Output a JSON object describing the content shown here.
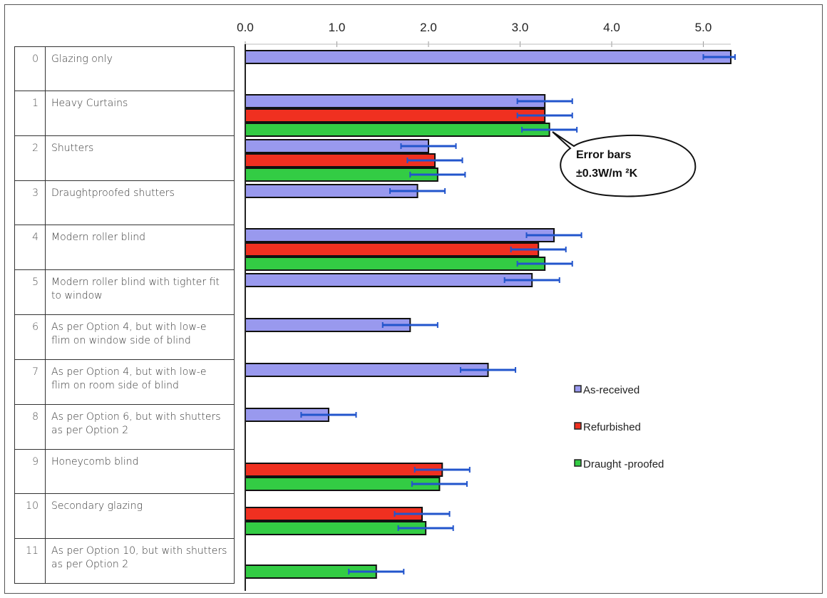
{
  "options": [
    {
      "num": "0",
      "label": "Glazing only"
    },
    {
      "num": "1",
      "label": "Heavy Curtains"
    },
    {
      "num": "2",
      "label": "Shutters"
    },
    {
      "num": "3",
      "label": "Draughtproofed shutters"
    },
    {
      "num": "4",
      "label": "Modern roller blind"
    },
    {
      "num": "5",
      "label": "Modern roller blind with tighter fit to window"
    },
    {
      "num": "6",
      "label": "As per Option 4, but with low-e flim on window side of blind"
    },
    {
      "num": "7",
      "label": "As per Option 4, but with low-e flim on room side of blind"
    },
    {
      "num": "8",
      "label": "As per Option 6, but with shutters as per Option 2"
    },
    {
      "num": "9",
      "label": "Honeycomb blind"
    },
    {
      "num": "10",
      "label": "Secondary glazing"
    },
    {
      "num": "11",
      "label": "As per Option 10, but with shutters as per Option 2"
    }
  ],
  "chart_data": {
    "type": "bar",
    "orientation": "horizontal",
    "x_ticks": [
      "0.0",
      "1.0",
      "2.0",
      "3.0",
      "4.0",
      "5.0"
    ],
    "xlim": [
      0,
      5.3
    ],
    "categories": [
      "0",
      "1",
      "2",
      "3",
      "4",
      "5",
      "6",
      "7",
      "8",
      "9",
      "10",
      "11"
    ],
    "series": [
      {
        "name": "As-received",
        "color": "#9999ee",
        "values": [
          5.3,
          3.27,
          2.0,
          1.88,
          3.37,
          3.13,
          1.8,
          2.65,
          0.91,
          null,
          null,
          null
        ]
      },
      {
        "name": "Refurbished",
        "color": "#f03020",
        "values": [
          null,
          3.27,
          2.07,
          null,
          3.2,
          null,
          null,
          null,
          null,
          2.15,
          1.93,
          null
        ]
      },
      {
        "name": "Draught -proofed",
        "color": "#33cc44",
        "values": [
          null,
          3.32,
          2.1,
          null,
          3.27,
          null,
          null,
          null,
          null,
          2.12,
          1.97,
          1.43
        ]
      }
    ],
    "error_bar": 0.3,
    "annotation": {
      "line1": "Error bars",
      "line2": "±0.3W/m ²K"
    },
    "legend_position": "right"
  }
}
